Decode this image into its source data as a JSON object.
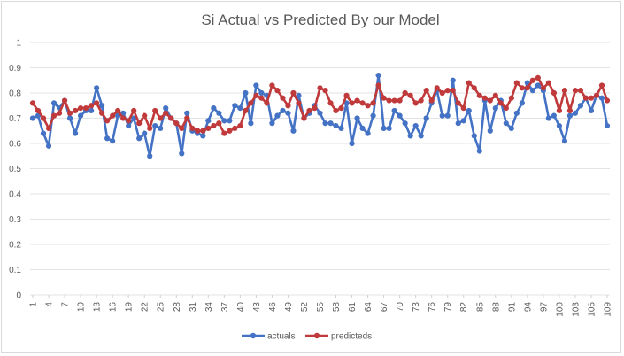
{
  "chart_data": {
    "type": "line",
    "title": "Si Actual vs Predicted By our Model",
    "xlabel": "",
    "ylabel": "",
    "ylim": [
      0,
      1
    ],
    "yticks": [
      "0",
      "0.1",
      "0.2",
      "0.3",
      "0.4",
      "0.5",
      "0.6",
      "0.7",
      "0.8",
      "0.9",
      "1"
    ],
    "x": [
      1,
      2,
      3,
      4,
      5,
      6,
      7,
      8,
      9,
      10,
      11,
      12,
      13,
      14,
      15,
      16,
      17,
      18,
      19,
      20,
      21,
      22,
      23,
      24,
      25,
      26,
      27,
      28,
      29,
      30,
      31,
      32,
      33,
      34,
      35,
      36,
      37,
      38,
      39,
      40,
      41,
      42,
      43,
      44,
      45,
      46,
      47,
      48,
      49,
      50,
      51,
      52,
      53,
      54,
      55,
      56,
      57,
      58,
      59,
      60,
      61,
      62,
      63,
      64,
      65,
      66,
      67,
      68,
      69,
      70,
      71,
      72,
      73,
      74,
      75,
      76,
      77,
      78,
      79,
      80,
      81,
      82,
      83,
      84,
      85,
      86,
      87,
      88,
      89,
      90,
      91,
      92,
      93,
      94,
      95,
      96,
      97,
      98,
      99,
      100,
      101,
      102,
      103,
      104,
      105,
      106,
      107,
      108,
      109
    ],
    "xtick_labels": [
      "1",
      "4",
      "7",
      "10",
      "13",
      "16",
      "19",
      "22",
      "25",
      "28",
      "31",
      "34",
      "37",
      "40",
      "43",
      "46",
      "49",
      "52",
      "55",
      "58",
      "61",
      "64",
      "67",
      "70",
      "73",
      "76",
      "79",
      "82",
      "85",
      "88",
      "91",
      "94",
      "97",
      "100",
      "103",
      "106",
      "109"
    ],
    "grid": true,
    "legend_position": "bottom",
    "series": [
      {
        "name": "actuals",
        "color": "#4472c4",
        "values": [
          0.7,
          0.71,
          0.64,
          0.59,
          0.76,
          0.74,
          0.77,
          0.7,
          0.64,
          0.71,
          0.73,
          0.73,
          0.82,
          0.75,
          0.62,
          0.61,
          0.71,
          0.72,
          0.67,
          0.7,
          0.62,
          0.64,
          0.55,
          0.67,
          0.66,
          0.74,
          0.7,
          0.68,
          0.56,
          0.72,
          0.65,
          0.64,
          0.63,
          0.69,
          0.74,
          0.72,
          0.69,
          0.69,
          0.75,
          0.74,
          0.8,
          0.68,
          0.83,
          0.8,
          0.79,
          0.68,
          0.71,
          0.73,
          0.72,
          0.65,
          0.79,
          0.7,
          0.72,
          0.75,
          0.72,
          0.68,
          0.68,
          0.67,
          0.66,
          0.76,
          0.6,
          0.7,
          0.66,
          0.64,
          0.71,
          0.87,
          0.66,
          0.66,
          0.73,
          0.71,
          0.68,
          0.63,
          0.67,
          0.63,
          0.7,
          0.76,
          0.81,
          0.71,
          0.71,
          0.85,
          0.68,
          0.69,
          0.73,
          0.63,
          0.57,
          0.77,
          0.65,
          0.74,
          0.77,
          0.68,
          0.66,
          0.72,
          0.76,
          0.84,
          0.81,
          0.83,
          0.81,
          0.7,
          0.71,
          0.67,
          0.61,
          0.71,
          0.72,
          0.75,
          0.78,
          0.73,
          0.79,
          0.78,
          0.67
        ]
      },
      {
        "name": "predicteds",
        "color": "#c0393b",
        "values": [
          0.76,
          0.73,
          0.7,
          0.66,
          0.71,
          0.72,
          0.77,
          0.72,
          0.73,
          0.74,
          0.74,
          0.75,
          0.76,
          0.72,
          0.69,
          0.71,
          0.73,
          0.7,
          0.69,
          0.73,
          0.68,
          0.71,
          0.66,
          0.73,
          0.7,
          0.72,
          0.7,
          0.68,
          0.66,
          0.7,
          0.66,
          0.65,
          0.65,
          0.66,
          0.67,
          0.68,
          0.64,
          0.65,
          0.66,
          0.67,
          0.73,
          0.76,
          0.79,
          0.78,
          0.76,
          0.83,
          0.81,
          0.78,
          0.75,
          0.8,
          0.76,
          0.7,
          0.73,
          0.74,
          0.82,
          0.81,
          0.76,
          0.73,
          0.74,
          0.79,
          0.76,
          0.77,
          0.76,
          0.75,
          0.76,
          0.83,
          0.78,
          0.77,
          0.77,
          0.77,
          0.8,
          0.79,
          0.76,
          0.77,
          0.81,
          0.77,
          0.82,
          0.8,
          0.81,
          0.81,
          0.76,
          0.74,
          0.84,
          0.82,
          0.79,
          0.78,
          0.77,
          0.79,
          0.76,
          0.74,
          0.78,
          0.84,
          0.82,
          0.82,
          0.85,
          0.86,
          0.82,
          0.84,
          0.8,
          0.73,
          0.81,
          0.73,
          0.81,
          0.81,
          0.78,
          0.78,
          0.79,
          0.83,
          0.77
        ]
      }
    ]
  }
}
